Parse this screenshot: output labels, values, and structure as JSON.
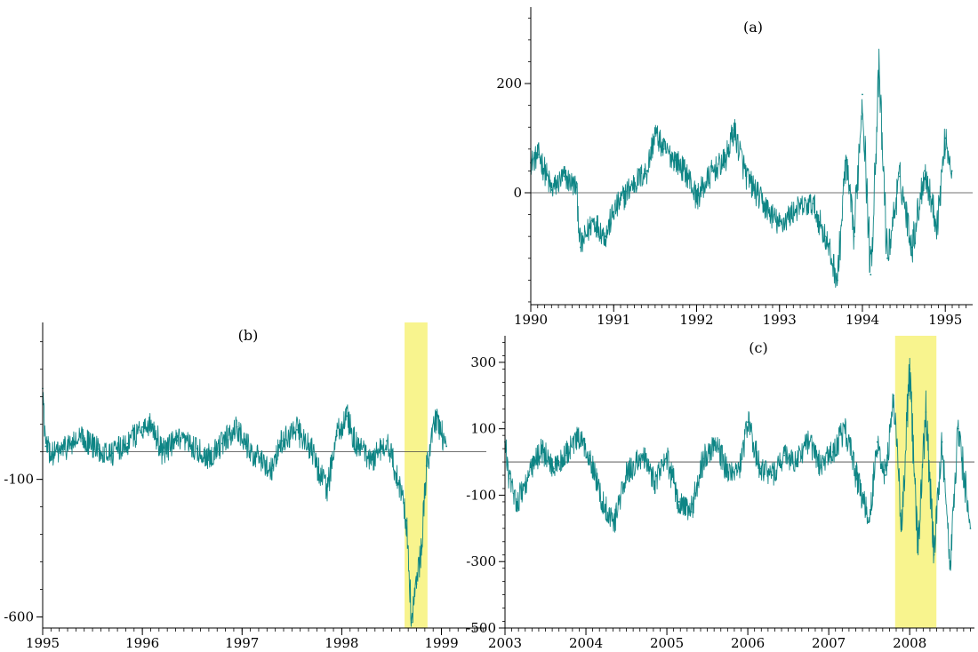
{
  "colors": {
    "series": "#0e8585",
    "axis": "#000000",
    "zero_line": "#444444",
    "highlight": "#f7f27a"
  },
  "chart_data": [
    {
      "id": "a",
      "type": "line",
      "title": "(a)",
      "xlabel": "",
      "ylabel": "",
      "xlim": [
        1990,
        1995.33
      ],
      "ylim": [
        -205,
        340
      ],
      "xticks": [
        1990,
        1991,
        1992,
        1993,
        1994,
        1995
      ],
      "xtick_labels": [
        "1990",
        "1991",
        "1992",
        "1993",
        "1994",
        "1995"
      ],
      "yticks": [
        200,
        0
      ],
      "ytick_labels": [
        "200",
        "0"
      ],
      "zero_line": true,
      "grid": false,
      "highlight": null,
      "series": [
        {
          "x": [
            1990.0,
            1990.1,
            1990.25,
            1990.4,
            1990.55,
            1990.6,
            1990.75,
            1990.9,
            1991.0,
            1991.2,
            1991.4,
            1991.5,
            1991.6,
            1991.75,
            1991.9,
            1992.0,
            1992.2,
            1992.35,
            1992.45,
            1992.6,
            1992.8,
            1993.0,
            1993.2,
            1993.4,
            1993.55,
            1993.7,
            1993.8,
            1993.9,
            1994.0,
            1994.1,
            1994.2,
            1994.3,
            1994.45,
            1994.6,
            1994.75,
            1994.9,
            1995.0,
            1995.08
          ],
          "y": [
            55,
            70,
            5,
            30,
            10,
            -100,
            -50,
            -80,
            -35,
            10,
            40,
            110,
            80,
            60,
            30,
            -10,
            40,
            60,
            115,
            30,
            -20,
            -60,
            -30,
            -20,
            -80,
            -160,
            60,
            -80,
            180,
            -150,
            220,
            -120,
            30,
            -100,
            40,
            -60,
            100,
            40
          ]
        }
      ]
    },
    {
      "id": "b",
      "type": "line",
      "title": "(b)",
      "xlabel": "",
      "ylabel": "",
      "xlim": [
        1995,
        1999.45
      ],
      "ylim": [
        -640,
        470
      ],
      "xticks": [
        1995,
        1996,
        1997,
        1998,
        1999
      ],
      "xtick_labels": [
        "1995",
        "1996",
        "1997",
        "1998",
        "1999"
      ],
      "yticks": [
        -100,
        -600
      ],
      "ytick_labels": [
        "-100",
        "-600"
      ],
      "zero_line": true,
      "grid": false,
      "highlight": [
        1998.63,
        1998.86
      ],
      "series": [
        {
          "x": [
            1995.0,
            1995.03,
            1995.1,
            1995.25,
            1995.4,
            1995.55,
            1995.7,
            1995.85,
            1996.0,
            1996.1,
            1996.2,
            1996.35,
            1996.5,
            1996.65,
            1996.8,
            1996.95,
            1997.05,
            1997.2,
            1997.3,
            1997.4,
            1997.55,
            1997.7,
            1997.85,
            1997.95,
            1998.05,
            1998.15,
            1998.3,
            1998.45,
            1998.55,
            1998.65,
            1998.7,
            1998.75,
            1998.8,
            1998.85,
            1998.95,
            1999.05
          ],
          "y": [
            230,
            20,
            -10,
            20,
            50,
            10,
            -5,
            30,
            90,
            100,
            0,
            40,
            20,
            -20,
            30,
            90,
            20,
            -40,
            -60,
            40,
            80,
            0,
            -140,
            60,
            130,
            20,
            -30,
            40,
            -80,
            -250,
            -620,
            -480,
            -350,
            -50,
            120,
            20
          ]
        }
      ]
    },
    {
      "id": "c",
      "type": "line",
      "title": "(c)",
      "xlabel": "",
      "ylabel": "",
      "xlim": [
        2003,
        2008.8
      ],
      "ylim": [
        -500,
        380
      ],
      "xticks": [
        2003,
        2004,
        2005,
        2006,
        2007,
        2008
      ],
      "xtick_labels": [
        "2003",
        "2004",
        "2005",
        "2006",
        "2007",
        "2008"
      ],
      "yticks": [
        300,
        100,
        -100,
        -300,
        -500
      ],
      "ytick_labels": [
        "300",
        "100",
        "-100",
        "-300",
        "-500"
      ],
      "zero_line": true,
      "grid": false,
      "highlight": [
        2007.82,
        2008.33
      ],
      "series": [
        {
          "x": [
            2003.0,
            2003.05,
            2003.15,
            2003.3,
            2003.45,
            2003.6,
            2003.75,
            2003.9,
            2004.05,
            2004.2,
            2004.35,
            2004.5,
            2004.7,
            2004.85,
            2005.0,
            2005.15,
            2005.3,
            2005.45,
            2005.6,
            2005.75,
            2005.9,
            2006.0,
            2006.15,
            2006.3,
            2006.45,
            2006.6,
            2006.75,
            2006.9,
            2007.05,
            2007.2,
            2007.35,
            2007.5,
            2007.6,
            2007.7,
            2007.8,
            2007.9,
            2008.0,
            2008.1,
            2008.2,
            2008.3,
            2008.4,
            2008.5,
            2008.6,
            2008.75
          ],
          "y": [
            60,
            -50,
            -120,
            -40,
            40,
            -20,
            20,
            70,
            20,
            -120,
            -180,
            -40,
            20,
            -60,
            10,
            -120,
            -150,
            10,
            60,
            -30,
            -20,
            120,
            -20,
            -40,
            20,
            0,
            60,
            -10,
            30,
            100,
            -50,
            -180,
            60,
            -40,
            200,
            -200,
            280,
            -250,
            150,
            -280,
            60,
            -300,
            100,
            -200
          ]
        }
      ]
    }
  ]
}
